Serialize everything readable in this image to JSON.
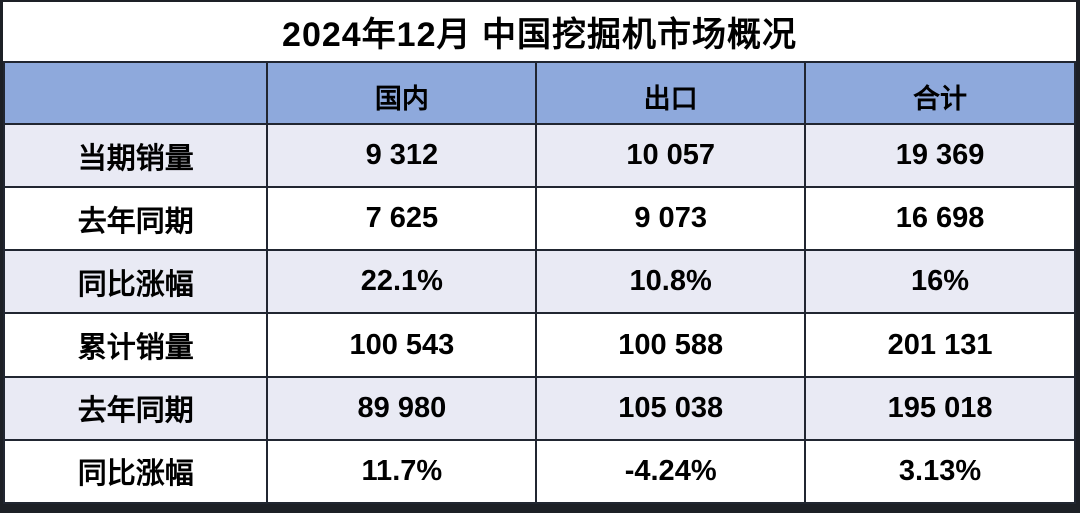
{
  "chart_data": {
    "type": "table",
    "title": "2024年12月 中国挖掘机市场概况",
    "columns": [
      "",
      "国内",
      "出口",
      "合计"
    ],
    "rows": [
      {
        "label": "当期销量",
        "values": [
          "9 312",
          "10 057",
          "19 369"
        ]
      },
      {
        "label": "去年同期",
        "values": [
          "7 625",
          "9 073",
          "16 698"
        ]
      },
      {
        "label": "同比涨幅",
        "values": [
          "22.1%",
          "10.8%",
          "16%"
        ]
      },
      {
        "label": "累计销量",
        "values": [
          "100 543",
          "100 588",
          "201 131"
        ]
      },
      {
        "label": "去年同期",
        "values": [
          "89 980",
          "105 038",
          "195 018"
        ]
      },
      {
        "label": "同比涨幅",
        "values": [
          "11.7%",
          "-4.24%",
          "3.13%"
        ]
      }
    ]
  },
  "colors": {
    "header_bg": "#8EA9DC",
    "alt_row_bg": "#E9EAF4",
    "row_bg": "#FFFFFF",
    "border": "#212631",
    "outer_border": "#1d2026",
    "text": "#000000"
  }
}
